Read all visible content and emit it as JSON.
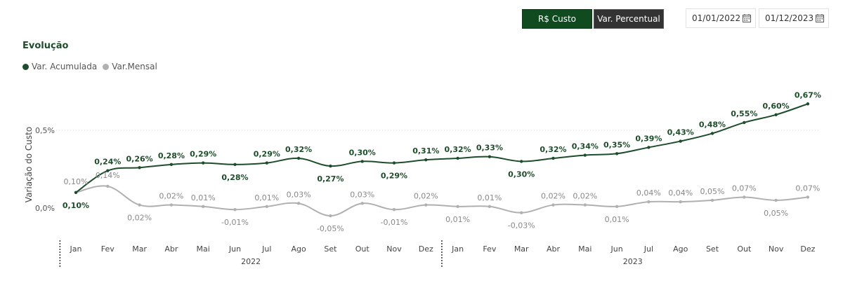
{
  "controls": {
    "btn_custo": "R$ Custo",
    "btn_perc": "Var. Percentual",
    "date_start": "01/01/2022",
    "date_end": "01/12/2023"
  },
  "colors": {
    "acumulada": "#1d4d2a",
    "mensal": "#b0b0b0",
    "accent_button": "#0f4b1f",
    "dark_button": "#333333"
  },
  "chart_data": {
    "type": "line",
    "title": "Evolução",
    "ylabel": "Variação do Custo",
    "yticks": [
      "0,0%",
      "0,5%"
    ],
    "ytick_values": [
      0.0,
      0.5
    ],
    "legend_position": "top-left",
    "categories": [
      "Jan",
      "Fev",
      "Mar",
      "Abr",
      "Mai",
      "Jun",
      "Jul",
      "Ago",
      "Set",
      "Out",
      "Nov",
      "Dez",
      "Jan",
      "Fev",
      "Mar",
      "Abr",
      "Mai",
      "Jun",
      "Jul",
      "Ago",
      "Set",
      "Out",
      "Nov",
      "Dez"
    ],
    "groups": [
      {
        "label": "2022",
        "count": 12
      },
      {
        "label": "2023",
        "count": 12
      }
    ],
    "series": [
      {
        "name": "Var. Acumulada",
        "values": [
          0.1,
          0.24,
          0.26,
          0.28,
          0.29,
          0.28,
          0.29,
          0.32,
          0.27,
          0.3,
          0.29,
          0.31,
          0.32,
          0.33,
          0.3,
          0.32,
          0.34,
          0.35,
          0.39,
          0.43,
          0.48,
          0.55,
          0.6,
          0.67
        ],
        "labels": [
          "0,10%",
          "0,24%",
          "0,26%",
          "0,28%",
          "0,29%",
          "0,28%",
          "0,29%",
          "0,32%",
          "0,27%",
          "0,30%",
          "0,29%",
          "0,31%",
          "0,32%",
          "0,33%",
          "0,30%",
          "0,32%",
          "0,34%",
          "0,35%",
          "0,39%",
          "0,43%",
          "0,48%",
          "0,55%",
          "0,60%",
          "0,67%"
        ]
      },
      {
        "name": "Var.Mensal",
        "values": [
          0.1,
          0.14,
          0.02,
          0.02,
          0.01,
          -0.01,
          0.01,
          0.03,
          -0.05,
          0.03,
          -0.01,
          0.02,
          0.01,
          0.01,
          -0.03,
          0.02,
          0.02,
          0.01,
          0.04,
          0.04,
          0.05,
          0.07,
          0.05,
          0.07
        ],
        "labels": [
          "0,10%",
          "0,14%",
          "0,02%",
          "0,02%",
          "0,01%",
          "-0,01%",
          "0,01%",
          "0,03%",
          "-0,05%",
          "0,03%",
          "-0,01%",
          "0,02%",
          "0,01%",
          "0,01%",
          "-0,03%",
          "0,02%",
          "0,02%",
          "0,01%",
          "0,04%",
          "0,04%",
          "0,05%",
          "0,07%",
          "0,05%",
          "0,07%"
        ]
      }
    ]
  }
}
